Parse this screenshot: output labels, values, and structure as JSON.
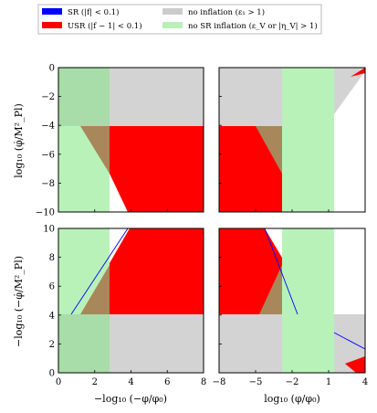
{
  "legend": {
    "entries": [
      {
        "label": "SR (|f| < 0.1)",
        "color": "#0000ff"
      },
      {
        "label": "USR (|f − 1| < 0.1)",
        "color": "#ff0000"
      },
      {
        "label": "no inflation (ε₁ > 1)",
        "color": "#cccccc"
      },
      {
        "label": "no SR inflation (ε_V or |η_V| > 1)",
        "color": "#b9f0b9"
      }
    ]
  },
  "colors": {
    "sr": "#0000ff",
    "usr": "#ff0000",
    "no_inflation": "#d3d3d3",
    "no_sr": "#b9f2b9",
    "overlap_brown": "#a8875a"
  },
  "axes": {
    "ylabel_top": "log₁₀ (φ̇/M²_Pl)",
    "ylabel_bottom": "−log₁₀ (−φ̇/M²_Pl)",
    "xlabel_left": "−log₁₀ (−φ/φ₀)",
    "xlabel_right": "log₁₀ (φ/φ₀)"
  },
  "chart_data": [
    {
      "type": "area",
      "panel": "top-left",
      "xlim": [
        0,
        8
      ],
      "ylim": [
        -10,
        0
      ],
      "xticks": [],
      "yticks": [
        "0",
        "−2",
        "−4",
        "−6",
        "−8",
        "−10"
      ],
      "regions": [
        {
          "name": "no inflation",
          "x": [
            2.8,
            8
          ],
          "y": [
            -4,
            0
          ]
        },
        {
          "name": "no SR inflation",
          "x": [
            0,
            2.8
          ],
          "y": [
            -10,
            0
          ]
        },
        {
          "name": "USR",
          "x": [
            2.8,
            8
          ],
          "y": [
            -10,
            -4
          ]
        }
      ]
    },
    {
      "type": "area",
      "panel": "top-right",
      "xlim": [
        -8,
        4
      ],
      "ylim": [
        -10,
        0
      ],
      "xticks": [],
      "yticks": [],
      "regions": [
        {
          "name": "no inflation",
          "x": [
            -8,
            4
          ],
          "y": [
            -4,
            0
          ]
        },
        {
          "name": "no SR inflation",
          "x": [
            -2.4,
            1.2
          ],
          "y": [
            -10,
            0
          ]
        },
        {
          "name": "USR",
          "x": [
            -8,
            -2.4
          ],
          "y": [
            -10,
            -4
          ]
        }
      ]
    },
    {
      "type": "area",
      "panel": "bottom-left",
      "xlim": [
        0,
        8
      ],
      "ylim": [
        0,
        10
      ],
      "xticks": [
        "0",
        "2",
        "4",
        "6",
        "8"
      ],
      "yticks": [
        "0",
        "2",
        "4",
        "6",
        "8",
        "10"
      ],
      "regions": [
        {
          "name": "no inflation",
          "x": [
            0,
            8
          ],
          "y": [
            0,
            4
          ]
        },
        {
          "name": "no SR inflation",
          "x": [
            0,
            2.8
          ],
          "y": [
            0,
            10
          ]
        },
        {
          "name": "USR",
          "x": [
            2.8,
            8
          ],
          "y": [
            4,
            10
          ]
        }
      ]
    },
    {
      "type": "area",
      "panel": "bottom-right",
      "xlim": [
        -8,
        4
      ],
      "ylim": [
        0,
        10
      ],
      "xticks": [
        "−8",
        "−5",
        "−2",
        "1",
        "4"
      ],
      "yticks": [],
      "regions": [
        {
          "name": "no inflation",
          "x": [
            -8,
            4
          ],
          "y": [
            0,
            4
          ]
        },
        {
          "name": "no SR inflation",
          "x": [
            -2.4,
            1.2
          ],
          "y": [
            0,
            10
          ]
        },
        {
          "name": "USR",
          "x": [
            -8,
            -2.4
          ],
          "y": [
            4,
            10
          ]
        }
      ]
    }
  ]
}
